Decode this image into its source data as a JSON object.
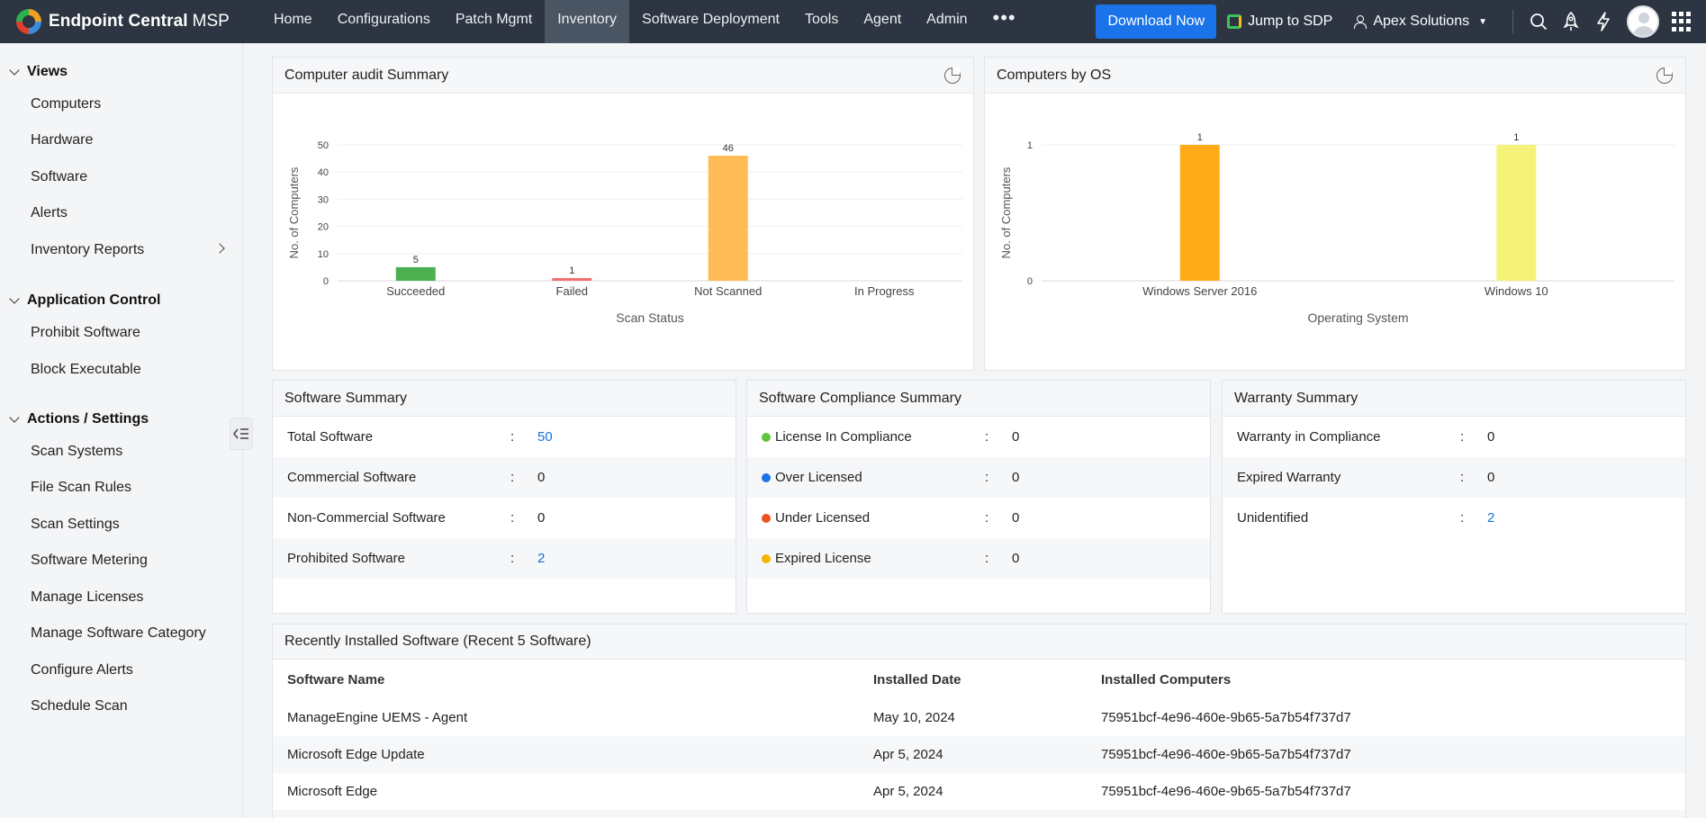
{
  "app": {
    "brand": "Endpoint Central",
    "brand_suffix": "MSP"
  },
  "nav": [
    {
      "label": "Home",
      "active": false
    },
    {
      "label": "Configurations",
      "active": false
    },
    {
      "label": "Patch Mgmt",
      "active": false
    },
    {
      "label": "Inventory",
      "active": true
    },
    {
      "label": "Software Deployment",
      "active": false
    },
    {
      "label": "Tools",
      "active": false
    },
    {
      "label": "Agent",
      "active": false
    },
    {
      "label": "Admin",
      "active": false
    }
  ],
  "nav_more": "•••",
  "topbar": {
    "download_label": "Download Now",
    "jump_label": "Jump to SDP",
    "org_label": "Apex Solutions",
    "icons": [
      "search-icon",
      "rocket-icon",
      "lightning-icon",
      "avatar",
      "app-grid-icon"
    ]
  },
  "sidebar": {
    "sections": [
      {
        "title": "Views",
        "items": [
          "Computers",
          "Hardware",
          "Software",
          "Alerts",
          "Inventory Reports"
        ]
      },
      {
        "title": "Application Control",
        "items": [
          "Prohibit Software",
          "Block Executable"
        ]
      },
      {
        "title": "Actions / Settings",
        "items": [
          "Scan Systems",
          "File Scan Rules",
          "Scan Settings",
          "Software Metering",
          "Manage Licenses",
          "Manage Software Category",
          "Configure Alerts",
          "Schedule Scan"
        ]
      }
    ]
  },
  "audit_panel": {
    "title": "Computer audit Summary"
  },
  "os_panel": {
    "title": "Computers by OS"
  },
  "chart_data": [
    {
      "type": "bar",
      "categories": [
        "Succeeded",
        "Failed",
        "Not Scanned",
        "In Progress"
      ],
      "values": [
        5,
        1,
        46,
        0
      ],
      "colors": [
        "#4cb050",
        "#f07070",
        "#ffbb55",
        "#cccccc"
      ],
      "xlabel": "Scan Status",
      "ylabel": "No. of Computers",
      "yticks": [
        0,
        10,
        20,
        30,
        40,
        50
      ],
      "ylim": [
        0,
        50
      ],
      "grid": true
    },
    {
      "type": "bar",
      "categories": [
        "Windows Server 2016",
        "Windows 10"
      ],
      "values": [
        1,
        1
      ],
      "colors": [
        "#ffab19",
        "#f5f27a"
      ],
      "xlabel": "Operating System",
      "ylabel": "No. of Computers",
      "yticks": [
        0,
        1
      ],
      "ylim": [
        0,
        1
      ],
      "grid": true
    }
  ],
  "software_summary": {
    "title": "Software Summary",
    "rows": [
      {
        "label": "Total Software",
        "value": "50",
        "link": true
      },
      {
        "label": "Commercial Software",
        "value": "0",
        "link": false
      },
      {
        "label": "Non-Commercial Software",
        "value": "0",
        "link": false
      },
      {
        "label": "Prohibited Software",
        "value": "2",
        "link": true
      }
    ]
  },
  "compliance_summary": {
    "title": "Software Compliance Summary",
    "rows": [
      {
        "label": "License In Compliance",
        "value": "0",
        "color": "#5cc53a"
      },
      {
        "label": "Over Licensed",
        "value": "0",
        "color": "#1a73e8"
      },
      {
        "label": "Under Licensed",
        "value": "0",
        "color": "#f0501e"
      },
      {
        "label": "Expired License",
        "value": "0",
        "color": "#f7b500"
      }
    ]
  },
  "warranty_summary": {
    "title": "Warranty Summary",
    "rows": [
      {
        "label": "Warranty in Compliance",
        "value": "0",
        "link": false
      },
      {
        "label": "Expired Warranty",
        "value": "0",
        "link": false
      },
      {
        "label": "Unidentified",
        "value": "2",
        "link": true
      }
    ]
  },
  "recent_software": {
    "title": "Recently Installed Software (Recent 5 Software)",
    "columns": [
      "Software Name",
      "Installed Date",
      "Installed Computers"
    ],
    "rows": [
      [
        "ManageEngine UEMS - Agent",
        "May 10, 2024",
        "75951bcf-4e96-460e-9b65-5a7b54f737d7"
      ],
      [
        "Microsoft Edge Update",
        "Apr 5, 2024",
        "75951bcf-4e96-460e-9b65-5a7b54f737d7"
      ],
      [
        "Microsoft Edge",
        "Apr 5, 2024",
        "75951bcf-4e96-460e-9b65-5a7b54f737d7"
      ]
    ]
  },
  "separator": ":"
}
